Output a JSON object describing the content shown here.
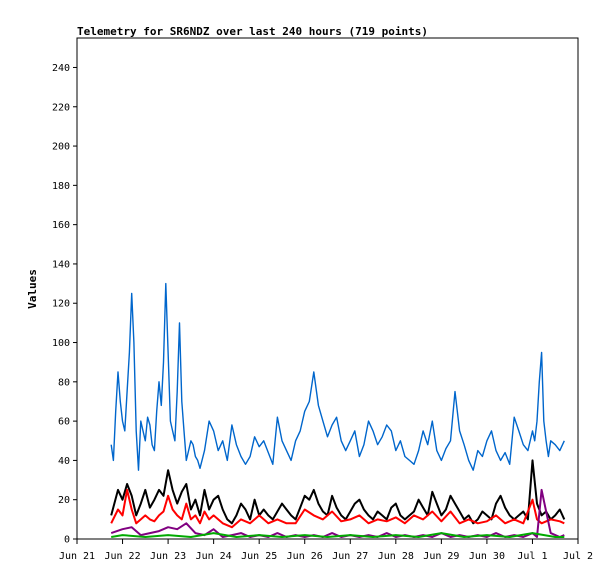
{
  "chart_data": {
    "type": "line",
    "title": "Telemetry for SR6NDZ over last 240 hours (719 points)",
    "xlabel": "",
    "ylabel": "Values",
    "ylim": [
      0,
      255
    ],
    "yticks": [
      0,
      20,
      40,
      60,
      80,
      100,
      120,
      140,
      160,
      180,
      200,
      220,
      240
    ],
    "xlim": [
      0,
      11
    ],
    "xtick_labels": [
      "Jun 21",
      "Jun 22",
      "Jun 23",
      "Jun 24",
      "Jun 25",
      "Jun 26",
      "Jun 27",
      "Jun 28",
      "Jun 29",
      "Jun 30",
      "Jul 1",
      "Jul 2"
    ],
    "grid": false,
    "series": [
      {
        "color": "#0066cc",
        "x": [
          0.75,
          0.8,
          0.85,
          0.9,
          0.95,
          1.0,
          1.05,
          1.1,
          1.15,
          1.2,
          1.25,
          1.3,
          1.35,
          1.4,
          1.45,
          1.5,
          1.55,
          1.6,
          1.65,
          1.7,
          1.75,
          1.8,
          1.85,
          1.9,
          1.95,
          2.0,
          2.05,
          2.1,
          2.15,
          2.2,
          2.25,
          2.3,
          2.35,
          2.4,
          2.45,
          2.5,
          2.55,
          2.6,
          2.65,
          2.7,
          2.8,
          2.9,
          3.0,
          3.1,
          3.2,
          3.3,
          3.4,
          3.5,
          3.6,
          3.7,
          3.8,
          3.9,
          4.0,
          4.1,
          4.2,
          4.3,
          4.4,
          4.5,
          4.6,
          4.7,
          4.8,
          4.9,
          5.0,
          5.1,
          5.2,
          5.3,
          5.4,
          5.5,
          5.6,
          5.7,
          5.8,
          5.9,
          6.0,
          6.1,
          6.2,
          6.3,
          6.4,
          6.5,
          6.6,
          6.7,
          6.8,
          6.9,
          7.0,
          7.1,
          7.2,
          7.3,
          7.4,
          7.5,
          7.6,
          7.7,
          7.8,
          7.9,
          8.0,
          8.1,
          8.2,
          8.3,
          8.4,
          8.5,
          8.6,
          8.7,
          8.8,
          8.9,
          9.0,
          9.1,
          9.2,
          9.3,
          9.4,
          9.5,
          9.6,
          9.7,
          9.8,
          9.9,
          10.0,
          10.05,
          10.1,
          10.15,
          10.2,
          10.25,
          10.3,
          10.35,
          10.4,
          10.5,
          10.6,
          10.7
        ],
        "y": [
          48,
          40,
          65,
          85,
          70,
          60,
          55,
          75,
          95,
          125,
          100,
          55,
          35,
          60,
          55,
          50,
          62,
          58,
          48,
          45,
          65,
          80,
          68,
          90,
          130,
          95,
          60,
          55,
          50,
          75,
          110,
          70,
          55,
          40,
          45,
          50,
          48,
          42,
          40,
          36,
          45,
          60,
          55,
          45,
          50,
          40,
          58,
          48,
          42,
          38,
          42,
          52,
          47,
          50,
          44,
          38,
          62,
          50,
          45,
          40,
          50,
          55,
          65,
          70,
          85,
          68,
          60,
          52,
          58,
          62,
          50,
          45,
          50,
          55,
          42,
          48,
          60,
          55,
          48,
          52,
          58,
          55,
          45,
          50,
          42,
          40,
          38,
          45,
          55,
          48,
          60,
          45,
          40,
          46,
          50,
          75,
          55,
          48,
          40,
          35,
          45,
          42,
          50,
          55,
          45,
          40,
          44,
          38,
          62,
          55,
          48,
          45,
          55,
          50,
          60,
          80,
          95,
          60,
          50,
          42,
          50,
          48,
          45,
          50
        ]
      },
      {
        "color": "#000000",
        "x": [
          0.75,
          0.9,
          1.0,
          1.1,
          1.2,
          1.3,
          1.4,
          1.5,
          1.6,
          1.7,
          1.8,
          1.9,
          2.0,
          2.1,
          2.2,
          2.3,
          2.4,
          2.5,
          2.6,
          2.7,
          2.8,
          2.9,
          3.0,
          3.1,
          3.2,
          3.3,
          3.4,
          3.5,
          3.6,
          3.7,
          3.8,
          3.9,
          4.0,
          4.1,
          4.2,
          4.3,
          4.4,
          4.5,
          4.6,
          4.7,
          4.8,
          4.9,
          5.0,
          5.1,
          5.2,
          5.3,
          5.4,
          5.5,
          5.6,
          5.7,
          5.8,
          5.9,
          6.0,
          6.1,
          6.2,
          6.3,
          6.4,
          6.5,
          6.6,
          6.7,
          6.8,
          6.9,
          7.0,
          7.1,
          7.2,
          7.3,
          7.4,
          7.5,
          7.6,
          7.7,
          7.8,
          7.9,
          8.0,
          8.1,
          8.2,
          8.3,
          8.4,
          8.5,
          8.6,
          8.7,
          8.8,
          8.9,
          9.0,
          9.1,
          9.2,
          9.3,
          9.4,
          9.5,
          9.6,
          9.7,
          9.8,
          9.9,
          10.0,
          10.1,
          10.2,
          10.3,
          10.4,
          10.5,
          10.6,
          10.7
        ],
        "y": [
          12,
          25,
          20,
          28,
          22,
          12,
          18,
          25,
          16,
          20,
          25,
          22,
          35,
          25,
          18,
          24,
          28,
          15,
          20,
          12,
          25,
          15,
          20,
          22,
          15,
          10,
          8,
          12,
          18,
          15,
          10,
          20,
          12,
          15,
          12,
          10,
          14,
          18,
          15,
          12,
          10,
          16,
          22,
          20,
          25,
          18,
          14,
          12,
          22,
          16,
          12,
          10,
          14,
          18,
          20,
          15,
          12,
          10,
          14,
          12,
          10,
          16,
          18,
          12,
          10,
          12,
          14,
          20,
          16,
          12,
          24,
          18,
          12,
          15,
          22,
          18,
          14,
          10,
          12,
          8,
          10,
          14,
          12,
          10,
          18,
          22,
          16,
          12,
          10,
          12,
          14,
          10,
          40,
          18,
          12,
          14,
          10,
          12,
          15,
          10
        ]
      },
      {
        "color": "#ff0000",
        "x": [
          0.75,
          0.9,
          1.0,
          1.1,
          1.2,
          1.3,
          1.4,
          1.5,
          1.6,
          1.7,
          1.8,
          1.9,
          2.0,
          2.1,
          2.2,
          2.3,
          2.4,
          2.5,
          2.6,
          2.7,
          2.8,
          2.9,
          3.0,
          3.2,
          3.4,
          3.6,
          3.8,
          4.0,
          4.2,
          4.4,
          4.6,
          4.8,
          5.0,
          5.2,
          5.4,
          5.6,
          5.8,
          6.0,
          6.2,
          6.4,
          6.6,
          6.8,
          7.0,
          7.2,
          7.4,
          7.6,
          7.8,
          8.0,
          8.2,
          8.4,
          8.6,
          8.8,
          9.0,
          9.2,
          9.4,
          9.6,
          9.8,
          10.0,
          10.1,
          10.2,
          10.4,
          10.6,
          10.7
        ],
        "y": [
          8,
          15,
          12,
          25,
          15,
          8,
          10,
          12,
          10,
          9,
          12,
          14,
          22,
          15,
          12,
          10,
          18,
          10,
          12,
          8,
          14,
          10,
          12,
          8,
          6,
          10,
          8,
          12,
          8,
          10,
          8,
          8,
          15,
          12,
          10,
          14,
          9,
          10,
          12,
          8,
          10,
          9,
          11,
          8,
          12,
          10,
          14,
          9,
          14,
          8,
          10,
          8,
          9,
          12,
          8,
          10,
          8,
          20,
          10,
          8,
          10,
          9,
          8
        ]
      },
      {
        "color": "#800080",
        "x": [
          0.75,
          1.0,
          1.2,
          1.4,
          1.6,
          1.8,
          2.0,
          2.2,
          2.4,
          2.6,
          2.8,
          3.0,
          3.2,
          3.4,
          3.6,
          3.8,
          4.0,
          4.2,
          4.4,
          4.6,
          4.8,
          5.0,
          5.2,
          5.4,
          5.6,
          5.8,
          6.0,
          6.2,
          6.4,
          6.6,
          6.8,
          7.0,
          7.2,
          7.4,
          7.6,
          7.8,
          8.0,
          8.2,
          8.4,
          8.6,
          8.8,
          9.0,
          9.2,
          9.4,
          9.6,
          9.8,
          9.9,
          10.0,
          10.1,
          10.2,
          10.4,
          10.6,
          10.7
        ],
        "y": [
          3,
          5,
          6,
          2,
          3,
          4,
          6,
          5,
          8,
          3,
          2,
          5,
          1,
          2,
          3,
          1,
          2,
          1,
          3,
          1,
          2,
          1,
          2,
          1,
          3,
          1,
          2,
          1,
          2,
          1,
          3,
          1,
          2,
          1,
          2,
          1,
          3,
          1,
          2,
          1,
          2,
          1,
          3,
          1,
          2,
          1,
          2,
          3,
          1,
          25,
          3,
          1,
          2
        ]
      },
      {
        "color": "#00aa00",
        "x": [
          0.75,
          1.0,
          1.5,
          2.0,
          2.5,
          3.0,
          3.5,
          4.0,
          4.5,
          5.0,
          5.5,
          6.0,
          6.5,
          7.0,
          7.5,
          8.0,
          8.5,
          9.0,
          9.5,
          10.0,
          10.5,
          10.7
        ],
        "y": [
          1,
          2,
          1,
          2,
          1,
          3,
          1,
          2,
          1,
          2,
          1,
          2,
          1,
          2,
          1,
          3,
          1,
          2,
          1,
          3,
          1,
          1
        ]
      }
    ]
  }
}
